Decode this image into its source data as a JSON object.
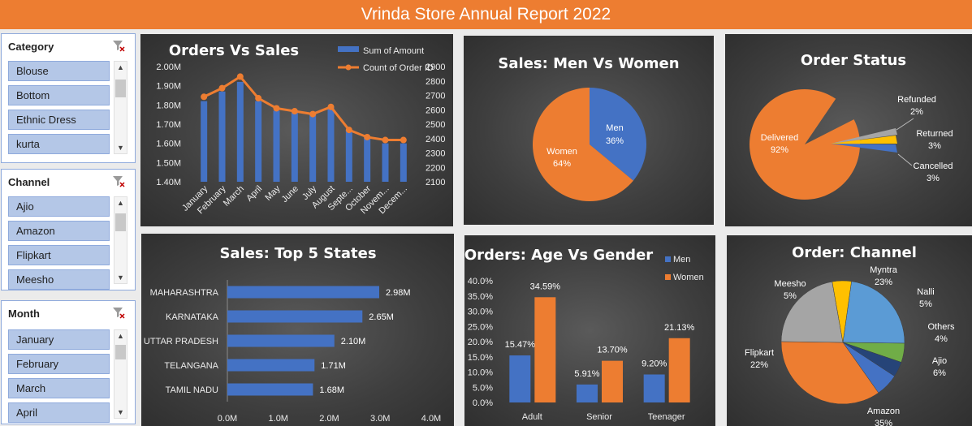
{
  "header": {
    "title": "Vrinda Store Annual Report 2022"
  },
  "slicers": {
    "category": {
      "title": "Category",
      "items": [
        "Blouse",
        "Bottom",
        "Ethnic Dress",
        "kurta"
      ]
    },
    "channel": {
      "title": "Channel",
      "items": [
        "Ajio",
        "Amazon",
        "Flipkart",
        "Meesho"
      ]
    },
    "month": {
      "title": "Month",
      "items": [
        "January",
        "February",
        "March",
        "April"
      ]
    }
  },
  "colors": {
    "blue": "#4472c4",
    "orange": "#ed7d31",
    "gray": "#a5a5a5",
    "yellow": "#ffc000",
    "lightblue": "#5b9bd5",
    "green": "#70ad47",
    "navy": "#264478"
  },
  "chart_data": [
    {
      "type": "bar",
      "title": "Orders Vs Sales",
      "categories": [
        "January",
        "February",
        "March",
        "April",
        "May",
        "June",
        "July",
        "August",
        "Septe...",
        "October",
        "Novem...",
        "Decem..."
      ],
      "series": [
        {
          "name": "Sum of Amount",
          "axis": "left",
          "values": [
            1.82,
            1.87,
            1.92,
            1.82,
            1.77,
            1.76,
            1.76,
            1.79,
            1.67,
            1.63,
            1.6,
            1.6
          ]
        },
        {
          "name": "Count of Order ID",
          "type": "line",
          "axis": "right",
          "values": [
            2690,
            2750,
            2830,
            2680,
            2610,
            2590,
            2570,
            2620,
            2460,
            2410,
            2390,
            2390
          ]
        }
      ],
      "yticks_left": [
        "1.40M",
        "1.50M",
        "1.60M",
        "1.70M",
        "1.80M",
        "1.90M",
        "2.00M"
      ],
      "yticks_right": [
        "2100",
        "2200",
        "2300",
        "2400",
        "2500",
        "2600",
        "2700",
        "2800",
        "2900"
      ],
      "ylim_left": [
        1.4,
        2.0
      ],
      "ylim_right": [
        2100,
        2900
      ],
      "legend": "top-right"
    },
    {
      "type": "pie",
      "title": "Sales: Men Vs Women",
      "labels": [
        "Men",
        "Women"
      ],
      "values": [
        36,
        64
      ],
      "value_labels": [
        "36%",
        "64%"
      ]
    },
    {
      "type": "pie",
      "title": "Order Status",
      "labels": [
        "Delivered",
        "Refunded",
        "Returned",
        "Cancelled"
      ],
      "values": [
        92,
        2,
        3,
        3
      ],
      "value_labels": [
        "92%",
        "2%",
        "3%",
        "3%"
      ]
    },
    {
      "type": "bar",
      "orientation": "horizontal",
      "title": "Sales: Top 5 States",
      "categories": [
        "MAHARASHTRA",
        "KARNATAKA",
        "UTTAR PRADESH",
        "TELANGANA",
        "TAMIL NADU"
      ],
      "values": [
        2.98,
        2.65,
        2.1,
        1.71,
        1.68
      ],
      "value_labels": [
        "2.98M",
        "2.65M",
        "2.10M",
        "1.71M",
        "1.68M"
      ],
      "xticks": [
        "0.0M",
        "1.0M",
        "2.0M",
        "3.0M",
        "4.0M"
      ],
      "xlim": [
        0,
        4
      ]
    },
    {
      "type": "bar",
      "title": "Orders: Age Vs Gender",
      "categories": [
        "Adult",
        "Senior",
        "Teenager"
      ],
      "series": [
        {
          "name": "Men",
          "values": [
            15.47,
            5.91,
            9.2
          ],
          "value_labels": [
            "15.47%",
            "5.91%",
            "9.20%"
          ]
        },
        {
          "name": "Women",
          "values": [
            34.59,
            13.7,
            21.13
          ],
          "value_labels": [
            "34.59%",
            "13.70%",
            "21.13%"
          ]
        }
      ],
      "yticks": [
        "0.0%",
        "5.0%",
        "10.0%",
        "15.0%",
        "20.0%",
        "25.0%",
        "30.0%",
        "35.0%",
        "40.0%"
      ],
      "ylim": [
        0,
        40
      ],
      "legend": "top-right"
    },
    {
      "type": "pie",
      "title": "Order: Channel",
      "labels": [
        "Myntra",
        "Nalli",
        "Others",
        "Ajio",
        "Amazon",
        "Flipkart",
        "Meesho"
      ],
      "values": [
        23,
        5,
        4,
        6,
        35,
        22,
        5
      ],
      "value_labels": [
        "23%",
        "5%",
        "4%",
        "6%",
        "35%",
        "22%",
        "5%"
      ]
    }
  ]
}
